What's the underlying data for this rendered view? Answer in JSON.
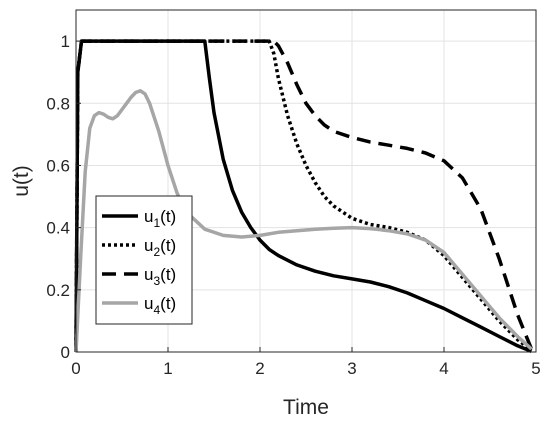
{
  "chart_data": {
    "type": "line",
    "title": "",
    "xlabel": "Time",
    "ylabel": "u(t)",
    "xlim": [
      0,
      5
    ],
    "ylim": [
      0,
      1.1
    ],
    "xticks": [
      0,
      1,
      2,
      3,
      4,
      5
    ],
    "yticks": [
      0,
      0.2,
      0.4,
      0.6,
      0.8,
      1
    ],
    "xtick_labels": [
      "0",
      "1",
      "2",
      "3",
      "4",
      "5"
    ],
    "ytick_labels": [
      "0",
      "0.2",
      "0.4",
      "0.6",
      "0.8",
      "1"
    ],
    "grid": true,
    "legend_position": "lower-left",
    "series": [
      {
        "name": "u1(t)",
        "label_base": "u",
        "label_sub": "1",
        "label_tail": "(t)",
        "color": "#000000",
        "style": "solid",
        "x": [
          0,
          0.02,
          0.06,
          1.4,
          1.45,
          1.5,
          1.6,
          1.7,
          1.8,
          1.9,
          2.0,
          2.1,
          2.2,
          2.4,
          2.6,
          2.8,
          3.0,
          3.2,
          3.4,
          3.6,
          3.8,
          4.0,
          4.2,
          4.4,
          4.6,
          4.8,
          4.95
        ],
        "y": [
          0,
          0.9,
          1.0,
          1.0,
          0.88,
          0.77,
          0.62,
          0.52,
          0.45,
          0.4,
          0.36,
          0.33,
          0.31,
          0.28,
          0.26,
          0.245,
          0.235,
          0.225,
          0.21,
          0.19,
          0.165,
          0.14,
          0.11,
          0.08,
          0.05,
          0.02,
          0.002
        ]
      },
      {
        "name": "u2(t)",
        "label_base": "u",
        "label_sub": "2",
        "label_tail": "(t)",
        "color": "#000000",
        "style": "dotted",
        "x": [
          0,
          0.02,
          0.06,
          2.1,
          2.15,
          2.2,
          2.3,
          2.4,
          2.5,
          2.6,
          2.7,
          2.8,
          3.0,
          3.2,
          3.4,
          3.6,
          3.8,
          4.0,
          4.2,
          4.4,
          4.6,
          4.8,
          4.95
        ],
        "y": [
          0,
          0.9,
          1.0,
          1.0,
          0.96,
          0.88,
          0.76,
          0.67,
          0.6,
          0.545,
          0.5,
          0.47,
          0.43,
          0.41,
          0.4,
          0.385,
          0.36,
          0.31,
          0.24,
          0.17,
          0.1,
          0.04,
          0.005
        ]
      },
      {
        "name": "u3(t)",
        "label_base": "u",
        "label_sub": "3",
        "label_tail": "(t)",
        "color": "#000000",
        "style": "dashed",
        "x": [
          0,
          0.02,
          0.06,
          2.15,
          2.2,
          2.3,
          2.4,
          2.5,
          2.6,
          2.7,
          2.8,
          3.0,
          3.2,
          3.4,
          3.6,
          3.8,
          4.0,
          4.2,
          4.4,
          4.6,
          4.8,
          4.95
        ],
        "y": [
          0,
          0.9,
          1.0,
          1.0,
          0.985,
          0.93,
          0.86,
          0.8,
          0.76,
          0.73,
          0.71,
          0.69,
          0.675,
          0.665,
          0.655,
          0.64,
          0.615,
          0.56,
          0.46,
          0.3,
          0.12,
          0.01
        ]
      },
      {
        "name": "u4(t)",
        "label_base": "u",
        "label_sub": "4",
        "label_tail": "(t)",
        "color": "#a6a6a6",
        "style": "solid",
        "x": [
          0,
          0.05,
          0.1,
          0.15,
          0.2,
          0.25,
          0.3,
          0.35,
          0.4,
          0.45,
          0.5,
          0.55,
          0.6,
          0.65,
          0.7,
          0.75,
          0.8,
          0.9,
          1.0,
          1.1,
          1.2,
          1.4,
          1.6,
          1.8,
          2.0,
          2.2,
          2.4,
          2.6,
          2.8,
          3.0,
          3.2,
          3.4,
          3.6,
          3.8,
          4.0,
          4.2,
          4.4,
          4.6,
          4.8,
          4.95
        ],
        "y": [
          0,
          0.3,
          0.58,
          0.72,
          0.76,
          0.77,
          0.765,
          0.755,
          0.75,
          0.76,
          0.78,
          0.8,
          0.82,
          0.835,
          0.84,
          0.83,
          0.8,
          0.71,
          0.6,
          0.51,
          0.45,
          0.395,
          0.375,
          0.37,
          0.375,
          0.385,
          0.39,
          0.395,
          0.398,
          0.4,
          0.397,
          0.39,
          0.38,
          0.36,
          0.32,
          0.25,
          0.18,
          0.11,
          0.05,
          0.01
        ]
      }
    ]
  }
}
